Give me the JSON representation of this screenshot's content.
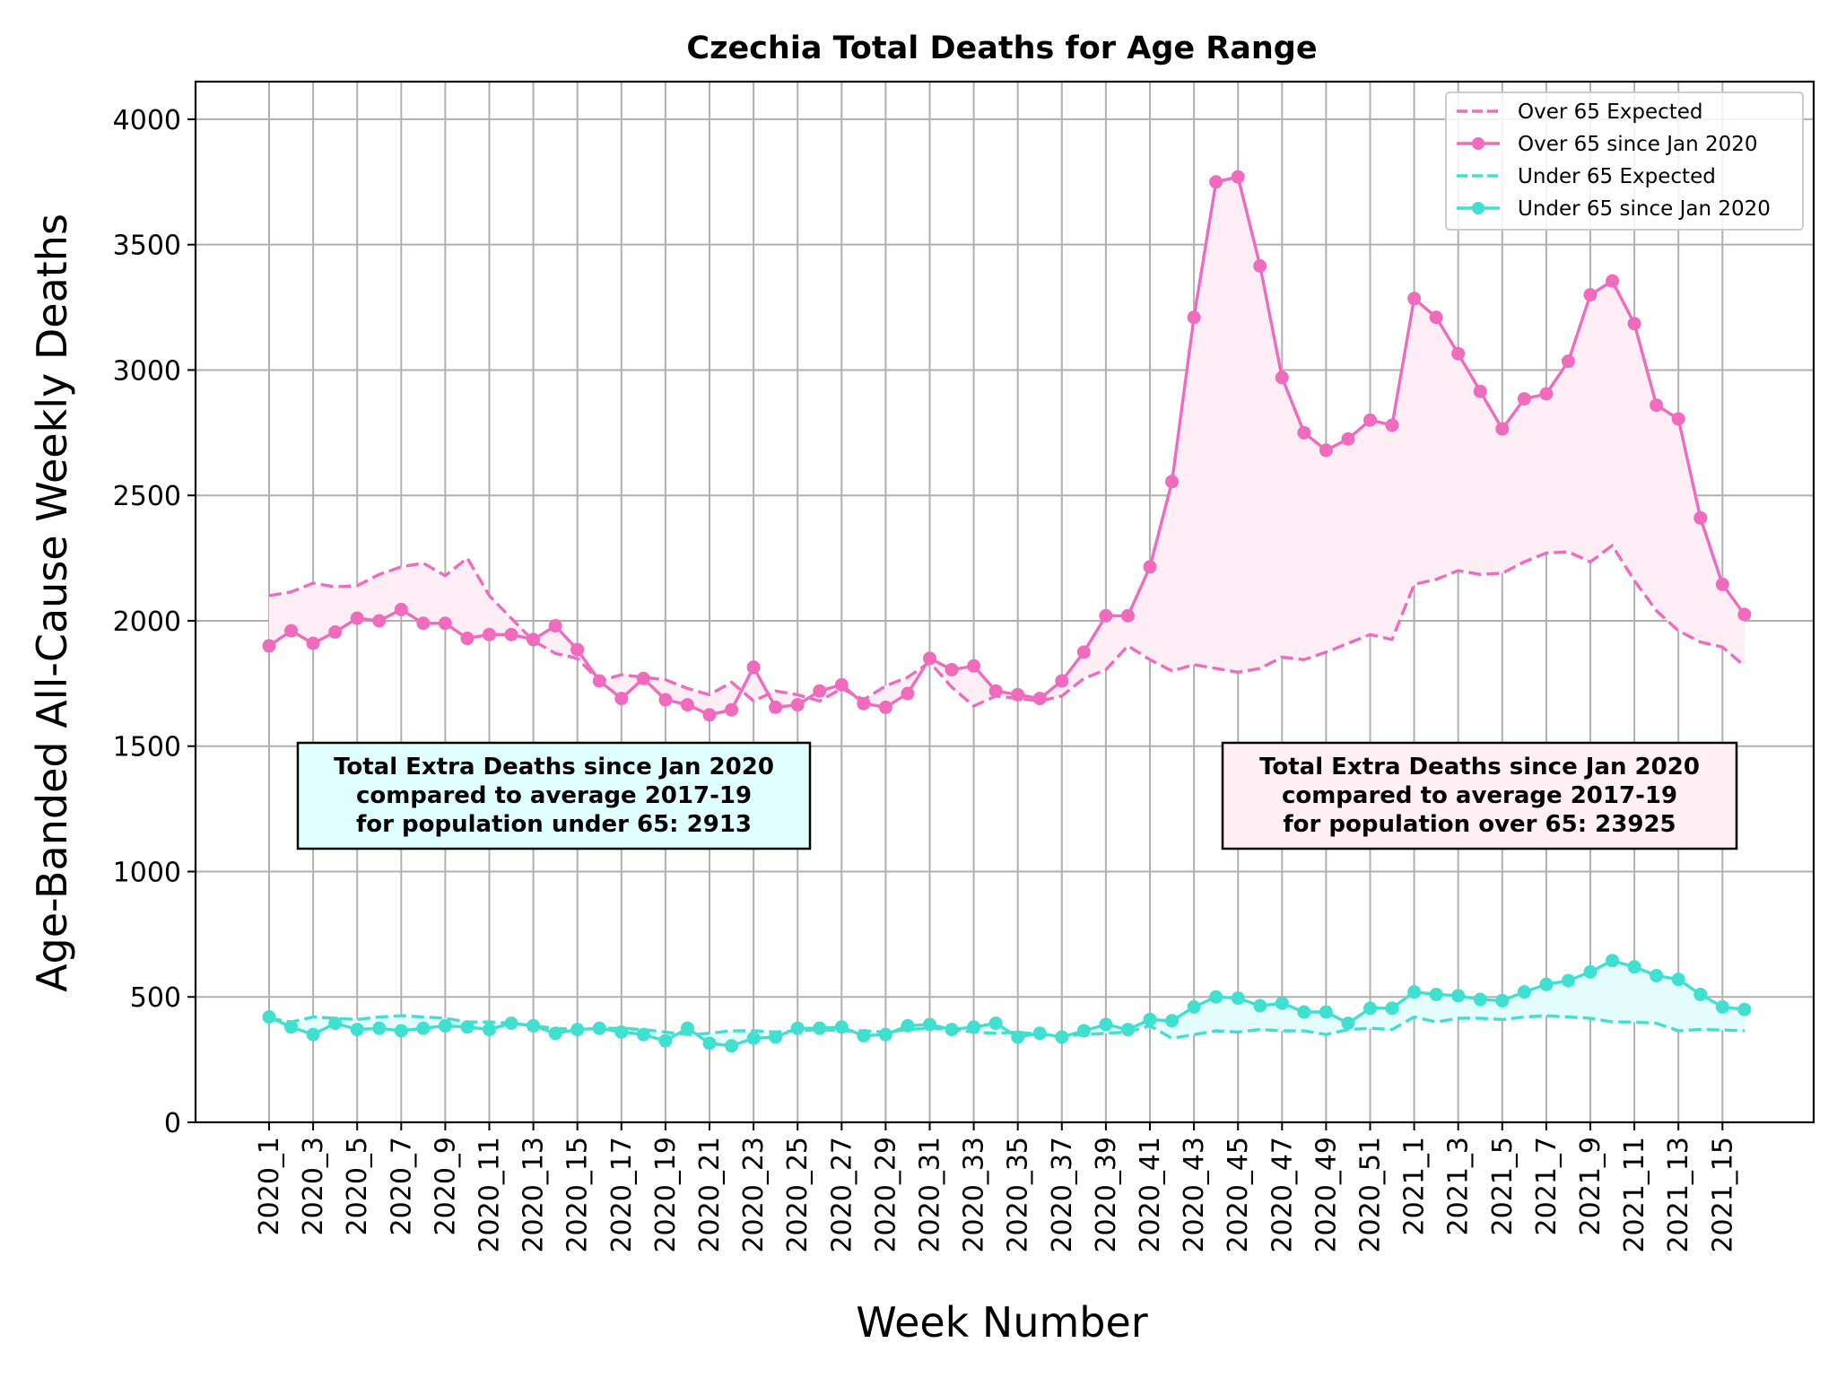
{
  "chart_data": {
    "type": "line",
    "title": "Czechia Total Deaths for Age Range",
    "xlabel": "Week Number",
    "ylabel": "Age-Banded All-Cause Weekly Deaths",
    "ylim": [
      0,
      4150
    ],
    "yticks": [
      0,
      500,
      1000,
      1500,
      2000,
      2500,
      3000,
      3500,
      4000
    ],
    "grid": true,
    "legend_position": "top-right",
    "categories": [
      "2020_1",
      "2020_2",
      "2020_3",
      "2020_4",
      "2020_5",
      "2020_6",
      "2020_7",
      "2020_8",
      "2020_9",
      "2020_10",
      "2020_11",
      "2020_12",
      "2020_13",
      "2020_14",
      "2020_15",
      "2020_16",
      "2020_17",
      "2020_18",
      "2020_19",
      "2020_20",
      "2020_21",
      "2020_22",
      "2020_23",
      "2020_24",
      "2020_25",
      "2020_26",
      "2020_27",
      "2020_28",
      "2020_29",
      "2020_30",
      "2020_31",
      "2020_32",
      "2020_33",
      "2020_34",
      "2020_35",
      "2020_36",
      "2020_37",
      "2020_38",
      "2020_39",
      "2020_40",
      "2020_41",
      "2020_42",
      "2020_43",
      "2020_44",
      "2020_45",
      "2020_46",
      "2020_47",
      "2020_48",
      "2020_49",
      "2020_50",
      "2020_51",
      "2020_52",
      "2021_1",
      "2021_2",
      "2021_3",
      "2021_4",
      "2021_5",
      "2021_6",
      "2021_7",
      "2021_8",
      "2021_9",
      "2021_10",
      "2021_11",
      "2021_12",
      "2021_13",
      "2021_14",
      "2021_15",
      "2021_16"
    ],
    "tick_labels": [
      "2020_1",
      "2020_3",
      "2020_5",
      "2020_7",
      "2020_9",
      "2020_11",
      "2020_13",
      "2020_15",
      "2020_17",
      "2020_19",
      "2020_21",
      "2020_23",
      "2020_25",
      "2020_27",
      "2020_29",
      "2020_31",
      "2020_33",
      "2020_35",
      "2020_37",
      "2020_39",
      "2020_41",
      "2020_43",
      "2020_45",
      "2020_47",
      "2020_49",
      "2020_51",
      "2021_1",
      "2021_3",
      "2021_5",
      "2021_7",
      "2021_9",
      "2021_11",
      "2021_13",
      "2021_15"
    ],
    "series": [
      {
        "name": "Over 65 Expected",
        "style": "dashed",
        "color": "#f06bbd",
        "values": [
          2100,
          2115,
          2150,
          2135,
          2140,
          2185,
          2215,
          2230,
          2180,
          2250,
          2100,
          2010,
          1920,
          1870,
          1850,
          1760,
          1785,
          1775,
          1765,
          1730,
          1705,
          1755,
          1680,
          1720,
          1705,
          1680,
          1730,
          1685,
          1740,
          1775,
          1835,
          1735,
          1660,
          1700,
          1690,
          1680,
          1700,
          1770,
          1805,
          1900,
          1845,
          1800,
          1825,
          1810,
          1795,
          1810,
          1855,
          1845,
          1875,
          1910,
          1945,
          1925,
          2145,
          2165,
          2200,
          2185,
          2190,
          2235,
          2270,
          2275,
          2235,
          2300,
          2160,
          2040,
          1960,
          1915,
          1895,
          1820
        ]
      },
      {
        "name": "Over 65 since Jan 2020",
        "style": "solid-marker",
        "color": "#f06bbd",
        "values": [
          1900,
          1960,
          1910,
          1955,
          2010,
          2000,
          2045,
          1990,
          1990,
          1930,
          1945,
          1945,
          1925,
          1980,
          1885,
          1760,
          1690,
          1770,
          1685,
          1665,
          1625,
          1645,
          1815,
          1655,
          1665,
          1720,
          1745,
          1670,
          1655,
          1710,
          1850,
          1805,
          1820,
          1720,
          1705,
          1690,
          1760,
          1875,
          2020,
          2020,
          2215,
          2555,
          3210,
          3750,
          3770,
          3415,
          2970,
          2750,
          2680,
          2725,
          2800,
          2780,
          3285,
          3210,
          3065,
          2915,
          2765,
          2885,
          2905,
          3035,
          3300,
          3355,
          3185,
          2860,
          2805,
          2410,
          2145,
          2025
        ]
      },
      {
        "name": "Under 65 Expected",
        "style": "dashed",
        "color": "#40e0d0",
        "values": [
          415,
          400,
          420,
          415,
          410,
          420,
          425,
          420,
          415,
          400,
          400,
          395,
          385,
          375,
          370,
          375,
          375,
          370,
          360,
          350,
          355,
          365,
          365,
          360,
          365,
          370,
          365,
          365,
          360,
          370,
          375,
          370,
          360,
          355,
          360,
          350,
          345,
          350,
          355,
          360,
          385,
          335,
          350,
          365,
          360,
          370,
          365,
          365,
          350,
          370,
          375,
          370,
          420,
          400,
          415,
          415,
          410,
          420,
          425,
          420,
          415,
          400,
          400,
          395,
          365,
          370,
          368,
          365
        ]
      },
      {
        "name": "Under 65 since Jan 2020",
        "style": "solid-marker",
        "color": "#40e0d0",
        "values": [
          420,
          380,
          350,
          395,
          370,
          375,
          365,
          375,
          385,
          380,
          370,
          395,
          385,
          355,
          370,
          375,
          360,
          350,
          325,
          375,
          315,
          305,
          335,
          340,
          375,
          375,
          380,
          345,
          350,
          385,
          390,
          370,
          380,
          395,
          340,
          355,
          340,
          365,
          390,
          370,
          410,
          405,
          460,
          500,
          495,
          465,
          475,
          440,
          440,
          395,
          455,
          455,
          520,
          510,
          505,
          490,
          485,
          520,
          550,
          565,
          600,
          645,
          620,
          585,
          570,
          510,
          460,
          450
        ]
      }
    ],
    "annotations": [
      {
        "lines": [
          "Total Extra Deaths since Jan 2020",
          "compared to average 2017-19",
          "for population under 65: 2913"
        ],
        "background": "#e0ffff"
      },
      {
        "lines": [
          "Total Extra Deaths since Jan 2020",
          "compared to average 2017-19",
          "for population over 65: 23925"
        ],
        "background": "#fff0f5"
      }
    ]
  }
}
